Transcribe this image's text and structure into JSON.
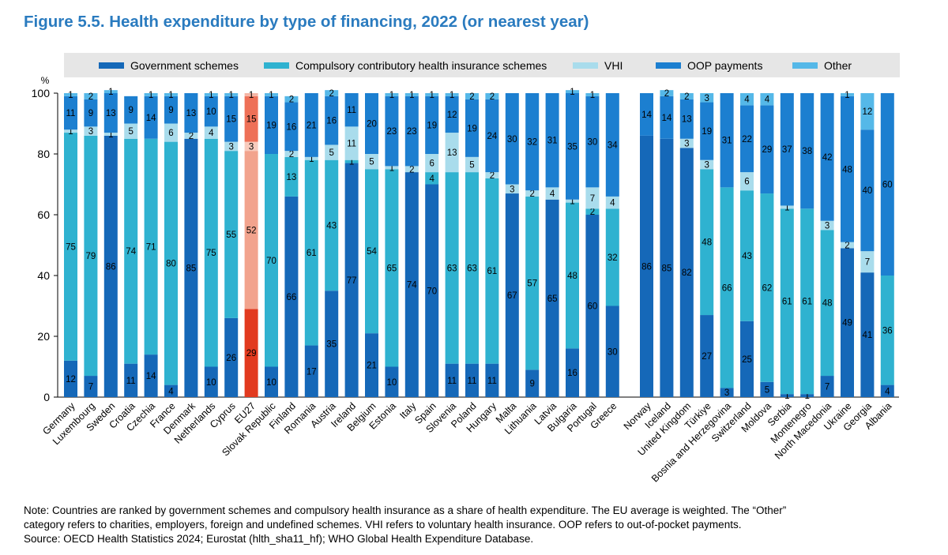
{
  "figure": {
    "title": "Figure 5.5. Health expenditure by type of financing, 2022 (or nearest year)"
  },
  "colors": {
    "gov": "#1568b8",
    "chi": "#2fb2d0",
    "vhi": "#a9dcec",
    "oop": "#1c7fd0",
    "other": "#55b8e8",
    "eu_gov": "#e23a1f",
    "eu_chi": "#f2a38d",
    "eu_vhi": "#f8cbbd",
    "eu_oop": "#ee7057",
    "eu_other": "#f4b5a5",
    "title": "#2a7bbf"
  },
  "chart_data": {
    "type": "bar",
    "stacked": true,
    "ylabel": "%",
    "ylim": [
      0,
      100
    ],
    "yticks": [
      0,
      20,
      40,
      60,
      80,
      100
    ],
    "grid": false,
    "legend_position": "top",
    "highlight": "EU27",
    "series": [
      {
        "key": "gov",
        "name": "Government schemes"
      },
      {
        "key": "chi",
        "name": "Compulsory contributory health insurance schemes"
      },
      {
        "key": "vhi",
        "name": "VHI"
      },
      {
        "key": "oop",
        "name": "OOP payments"
      },
      {
        "key": "other",
        "name": "Other"
      }
    ],
    "groups": [
      {
        "countries": [
          {
            "name": "Germany",
            "gov": 12,
            "chi": 75,
            "vhi": 1,
            "oop": 11,
            "other": 1
          },
          {
            "name": "Luxembourg",
            "gov": 7,
            "chi": 79,
            "vhi": 3,
            "oop": 9,
            "other": 2
          },
          {
            "name": "Sweden",
            "gov": 86,
            "chi": 0,
            "vhi": 1,
            "oop": 13,
            "other": 1
          },
          {
            "name": "Croatia",
            "gov": 11,
            "chi": 74,
            "vhi": 5,
            "oop": 9,
            "other": 0
          },
          {
            "name": "Czechia",
            "gov": 14,
            "chi": 71,
            "vhi": 0,
            "oop": 14,
            "other": 1
          },
          {
            "name": "France",
            "gov": 4,
            "chi": 80,
            "vhi": 6,
            "oop": 9,
            "other": 1
          },
          {
            "name": "Denmark",
            "gov": 85,
            "chi": 0,
            "vhi": 2,
            "oop": 13,
            "other": 0
          },
          {
            "name": "Netherlands",
            "gov": 10,
            "chi": 75,
            "vhi": 4,
            "oop": 10,
            "other": 1
          },
          {
            "name": "Cyprus",
            "gov": 26,
            "chi": 55,
            "vhi": 3,
            "oop": 15,
            "other": 1
          },
          {
            "name": "EU27",
            "gov": 29,
            "chi": 52,
            "vhi": 3,
            "oop": 15,
            "other": 1
          },
          {
            "name": "Slovak Republic",
            "gov": 10,
            "chi": 70,
            "vhi": 0,
            "oop": 19,
            "other": 1
          },
          {
            "name": "Finland",
            "gov": 66,
            "chi": 13,
            "vhi": 2,
            "oop": 16,
            "other": 2
          },
          {
            "name": "Romania",
            "gov": 17,
            "chi": 61,
            "vhi": 1,
            "oop": 21,
            "other": 0
          },
          {
            "name": "Austria",
            "gov": 35,
            "chi": 43,
            "vhi": 5,
            "oop": 16,
            "other": 2
          },
          {
            "name": "Ireland",
            "gov": 77,
            "chi": 1,
            "vhi": 11,
            "oop": 11,
            "other": 0
          },
          {
            "name": "Belgium",
            "gov": 21,
            "chi": 54,
            "vhi": 5,
            "oop": 20,
            "other": 0
          },
          {
            "name": "Estonia",
            "gov": 10,
            "chi": 65,
            "vhi": 1,
            "oop": 23,
            "other": 1
          },
          {
            "name": "Italy",
            "gov": 74,
            "chi": 0,
            "vhi": 2,
            "oop": 23,
            "other": 1
          },
          {
            "name": "Spain",
            "gov": 70,
            "chi": 4,
            "vhi": 6,
            "oop": 19,
            "other": 1
          },
          {
            "name": "Slovenia",
            "gov": 11,
            "chi": 63,
            "vhi": 13,
            "oop": 12,
            "other": 1
          },
          {
            "name": "Poland",
            "gov": 11,
            "chi": 63,
            "vhi": 5,
            "oop": 19,
            "other": 2
          },
          {
            "name": "Hungary",
            "gov": 11,
            "chi": 61,
            "vhi": 2,
            "oop": 24,
            "other": 2
          },
          {
            "name": "Malta",
            "gov": 67,
            "chi": 0,
            "vhi": 3,
            "oop": 30,
            "other": 0
          },
          {
            "name": "Lithuania",
            "gov": 9,
            "chi": 57,
            "vhi": 2,
            "oop": 32,
            "other": 0
          },
          {
            "name": "Latvia",
            "gov": 65,
            "chi": 0,
            "vhi": 4,
            "oop": 31,
            "other": 0
          },
          {
            "name": "Bulgaria",
            "gov": 16,
            "chi": 48,
            "vhi": 1,
            "oop": 35,
            "other": 1
          },
          {
            "name": "Portugal",
            "gov": 60,
            "chi": 2,
            "vhi": 7,
            "oop": 30,
            "other": 1
          },
          {
            "name": "Greece",
            "gov": 30,
            "chi": 32,
            "vhi": 4,
            "oop": 34,
            "other": 0
          }
        ]
      },
      {
        "countries": [
          {
            "name": "Norway",
            "gov": 86,
            "chi": 0,
            "vhi": 0,
            "oop": 14,
            "other": 0
          },
          {
            "name": "Iceland",
            "gov": 85,
            "chi": 0,
            "vhi": 0,
            "oop": 14,
            "other": 2
          },
          {
            "name": "United Kingdom",
            "gov": 82,
            "chi": 0,
            "vhi": 3,
            "oop": 13,
            "other": 2
          },
          {
            "name": "Türkiye",
            "gov": 27,
            "chi": 48,
            "vhi": 3,
            "oop": 19,
            "other": 3
          },
          {
            "name": "Bosnia and Herzegovina",
            "gov": 3,
            "chi": 66,
            "vhi": 0,
            "oop": 31,
            "other": 0
          },
          {
            "name": "Switzerland",
            "gov": 25,
            "chi": 43,
            "vhi": 6,
            "oop": 22,
            "other": 4
          },
          {
            "name": "Moldova",
            "gov": 5,
            "chi": 62,
            "vhi": 0,
            "oop": 29,
            "other": 4
          },
          {
            "name": "Serbia",
            "gov": 1,
            "chi": 61,
            "vhi": 1,
            "oop": 37,
            "other": 0
          },
          {
            "name": "Montenegro",
            "gov": 1,
            "chi": 61,
            "vhi": 0,
            "oop": 38,
            "other": 0
          },
          {
            "name": "North Macedonia",
            "gov": 7,
            "chi": 48,
            "vhi": 3,
            "oop": 42,
            "other": 0
          },
          {
            "name": "Ukraine",
            "gov": 49,
            "chi": 0,
            "vhi": 2,
            "oop": 48,
            "other": 1
          },
          {
            "name": "Georgia",
            "gov": 41,
            "chi": 0,
            "vhi": 7,
            "oop": 40,
            "other": 12
          },
          {
            "name": "Albania",
            "gov": 4,
            "chi": 36,
            "vhi": 0,
            "oop": 60,
            "other": 0
          }
        ]
      }
    ]
  },
  "note": {
    "line1": "Note: Countries are ranked by government schemes and compulsory health insurance as a share of health expenditure. The EU average is weighted. The “Other”",
    "line2": "category refers to charities, employers, foreign and undefined schemes. VHI refers to voluntary health insurance. OOP refers to out-of-pocket payments.",
    "line3": "Source: OECD Health Statistics 2024; Eurostat (hlth_sha11_hf); WHO Global Health Expenditure Database."
  }
}
